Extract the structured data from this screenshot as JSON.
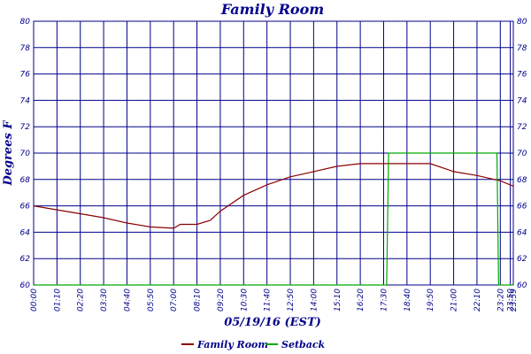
{
  "chart_data": {
    "type": "line",
    "title": "Family Room",
    "xlabel": "05/19/16 (EST)",
    "ylabel": "Degrees F",
    "yticks": [
      60,
      62,
      64,
      66,
      68,
      70,
      72,
      74,
      76,
      78,
      80
    ],
    "xticks": [
      "00:00",
      "01:10",
      "02:20",
      "03:30",
      "04:40",
      "05:50",
      "07:00",
      "08:10",
      "09:20",
      "10:30",
      "11:40",
      "12:50",
      "14:00",
      "15:10",
      "16:20",
      "17:30",
      "18:40",
      "19:50",
      "21:00",
      "22:10",
      "23:20",
      "23:50",
      "23:59"
    ],
    "ylim": [
      60,
      80
    ],
    "grid": true,
    "legend_position": "bottom",
    "series": [
      {
        "name": "Family Room",
        "color": "#8b0000",
        "x": [
          "00:00",
          "01:10",
          "02:20",
          "03:30",
          "04:40",
          "05:50",
          "07:00",
          "07:20",
          "08:10",
          "08:50",
          "09:20",
          "10:30",
          "11:40",
          "12:50",
          "14:00",
          "15:10",
          "16:20",
          "17:30",
          "18:40",
          "19:10",
          "19:50",
          "21:00",
          "22:10",
          "23:20",
          "23:59"
        ],
        "values": [
          66.0,
          65.7,
          65.4,
          65.1,
          64.7,
          64.4,
          64.3,
          64.6,
          64.6,
          64.9,
          65.6,
          66.8,
          67.6,
          68.2,
          68.6,
          69.0,
          69.2,
          69.2,
          69.2,
          69.2,
          69.2,
          68.6,
          68.3,
          67.9,
          67.5
        ]
      },
      {
        "name": "Setback",
        "color": "#00aa00",
        "x": [
          "00:00",
          "17:39",
          "17:45",
          "23:10",
          "23:15",
          "23:59"
        ],
        "values": [
          60,
          60,
          70,
          70,
          60,
          60
        ]
      }
    ]
  }
}
